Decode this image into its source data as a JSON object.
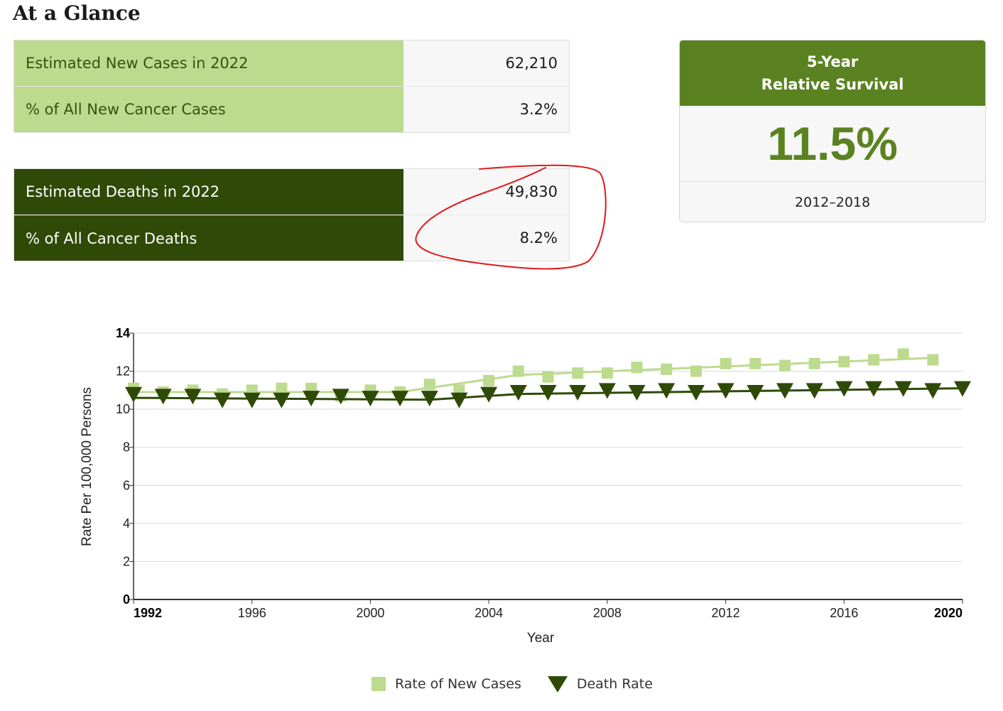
{
  "heading": "At a Glance",
  "new_cases_table": {
    "rows": [
      {
        "label": "Estimated New Cases in 2022",
        "value": "62,210"
      },
      {
        "label": "% of All New Cancer Cases",
        "value": "3.2%"
      }
    ]
  },
  "deaths_table": {
    "rows": [
      {
        "label": "Estimated Deaths in 2022",
        "value": "49,830"
      },
      {
        "label": "% of All Cancer Deaths",
        "value": "8.2%"
      }
    ]
  },
  "survival": {
    "title_line1": "5-Year",
    "title_line2": "Relative Survival",
    "value": "11.5%",
    "years": "2012–2018"
  },
  "colors": {
    "light_green": "#bcdb8f",
    "dark_green": "#2f4a07",
    "accent_green": "#5b8221",
    "annotation_red": "#e0191c"
  },
  "chart_data": {
    "type": "line",
    "xlabel": "Year",
    "ylabel": "Rate Per 100,000 Persons",
    "xlim": [
      1992,
      2020
    ],
    "ylim": [
      0,
      14
    ],
    "x_ticks": [
      {
        "label": "1992",
        "value": 1992,
        "bold": true
      },
      {
        "label": "1996",
        "value": 1996,
        "bold": false
      },
      {
        "label": "2000",
        "value": 2000,
        "bold": false
      },
      {
        "label": "2004",
        "value": 2004,
        "bold": false
      },
      {
        "label": "2008",
        "value": 2008,
        "bold": false
      },
      {
        "label": "2012",
        "value": 2012,
        "bold": false
      },
      {
        "label": "2016",
        "value": 2016,
        "bold": false
      },
      {
        "label": "2020",
        "value": 2020,
        "bold": true
      }
    ],
    "y_ticks": [
      {
        "label": "0",
        "value": 0,
        "bold": true
      },
      {
        "label": "2",
        "value": 2,
        "bold": false
      },
      {
        "label": "4",
        "value": 4,
        "bold": false
      },
      {
        "label": "6",
        "value": 6,
        "bold": false
      },
      {
        "label": "8",
        "value": 8,
        "bold": false
      },
      {
        "label": "10",
        "value": 10,
        "bold": false
      },
      {
        "label": "12",
        "value": 12,
        "bold": false
      },
      {
        "label": "14",
        "value": 14,
        "bold": true
      }
    ],
    "grid": true,
    "legend_position": "bottom-center",
    "series": [
      {
        "name": "Rate of New Cases",
        "marker": "square",
        "color": "#bcdb8f",
        "points": [
          {
            "x": 1992,
            "y": 11.1
          },
          {
            "x": 1993,
            "y": 10.9
          },
          {
            "x": 1994,
            "y": 11.0
          },
          {
            "x": 1995,
            "y": 10.8
          },
          {
            "x": 1996,
            "y": 11.0
          },
          {
            "x": 1997,
            "y": 11.1
          },
          {
            "x": 1998,
            "y": 11.1
          },
          {
            "x": 1999,
            "y": 10.7
          },
          {
            "x": 2000,
            "y": 11.0
          },
          {
            "x": 2001,
            "y": 10.9
          },
          {
            "x": 2002,
            "y": 11.3
          },
          {
            "x": 2003,
            "y": 11.0
          },
          {
            "x": 2004,
            "y": 11.5
          },
          {
            "x": 2005,
            "y": 12.0
          },
          {
            "x": 2006,
            "y": 11.7
          },
          {
            "x": 2007,
            "y": 11.9
          },
          {
            "x": 2008,
            "y": 11.9
          },
          {
            "x": 2009,
            "y": 12.2
          },
          {
            "x": 2010,
            "y": 12.1
          },
          {
            "x": 2011,
            "y": 12.0
          },
          {
            "x": 2012,
            "y": 12.4
          },
          {
            "x": 2013,
            "y": 12.4
          },
          {
            "x": 2014,
            "y": 12.3
          },
          {
            "x": 2015,
            "y": 12.4
          },
          {
            "x": 2016,
            "y": 12.5
          },
          {
            "x": 2017,
            "y": 12.6
          },
          {
            "x": 2018,
            "y": 12.9
          },
          {
            "x": 2019,
            "y": 12.6
          }
        ],
        "trend": [
          {
            "x": 1992,
            "y": 10.9
          },
          {
            "x": 2001,
            "y": 10.9
          },
          {
            "x": 2005,
            "y": 11.8
          },
          {
            "x": 2019,
            "y": 12.7
          }
        ]
      },
      {
        "name": "Death Rate",
        "marker": "triangle-down",
        "color": "#2f4a07",
        "points": [
          {
            "x": 1992,
            "y": 10.8
          },
          {
            "x": 1993,
            "y": 10.7
          },
          {
            "x": 1994,
            "y": 10.7
          },
          {
            "x": 1995,
            "y": 10.5
          },
          {
            "x": 1996,
            "y": 10.5
          },
          {
            "x": 1997,
            "y": 10.5
          },
          {
            "x": 1998,
            "y": 10.6
          },
          {
            "x": 1999,
            "y": 10.7
          },
          {
            "x": 2000,
            "y": 10.6
          },
          {
            "x": 2001,
            "y": 10.6
          },
          {
            "x": 2002,
            "y": 10.6
          },
          {
            "x": 2003,
            "y": 10.5
          },
          {
            "x": 2004,
            "y": 10.8
          },
          {
            "x": 2005,
            "y": 10.9
          },
          {
            "x": 2006,
            "y": 10.9
          },
          {
            "x": 2007,
            "y": 10.9
          },
          {
            "x": 2008,
            "y": 11.0
          },
          {
            "x": 2009,
            "y": 10.9
          },
          {
            "x": 2010,
            "y": 11.0
          },
          {
            "x": 2011,
            "y": 10.9
          },
          {
            "x": 2012,
            "y": 11.0
          },
          {
            "x": 2013,
            "y": 10.9
          },
          {
            "x": 2014,
            "y": 11.0
          },
          {
            "x": 2015,
            "y": 11.0
          },
          {
            "x": 2016,
            "y": 11.1
          },
          {
            "x": 2017,
            "y": 11.1
          },
          {
            "x": 2018,
            "y": 11.1
          },
          {
            "x": 2019,
            "y": 11.0
          },
          {
            "x": 2020,
            "y": 11.1
          }
        ],
        "trend": [
          {
            "x": 1992,
            "y": 10.6
          },
          {
            "x": 2002,
            "y": 10.5
          },
          {
            "x": 2005,
            "y": 10.8
          },
          {
            "x": 2020,
            "y": 11.1
          }
        ]
      }
    ]
  }
}
